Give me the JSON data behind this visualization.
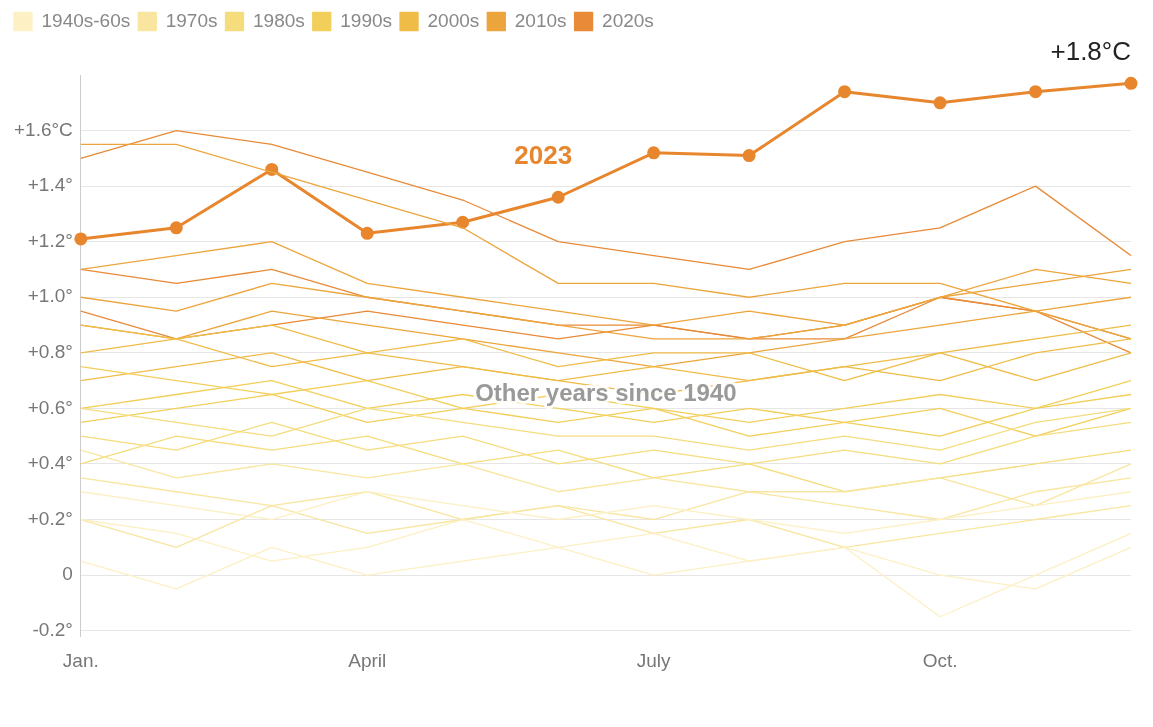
{
  "chart_data": {
    "type": "line",
    "categories": [
      "Jan.",
      null,
      null,
      "April",
      null,
      null,
      "July",
      null,
      null,
      "Oct.",
      null,
      null
    ],
    "ylim": [
      -0.22,
      1.8
    ],
    "yticks": [
      {
        "value": -0.2,
        "label": "-0.2°"
      },
      0,
      {
        "value": 0.2,
        "label": "+0.2°"
      },
      {
        "value": 0.4,
        "label": "+0.4°"
      },
      {
        "value": 0.6,
        "label": "+0.6°"
      },
      {
        "value": 0.8,
        "label": "+0.8°"
      },
      {
        "value": 1.0,
        "label": "+1.0°"
      },
      {
        "value": 1.2,
        "label": "+1.2°"
      },
      {
        "value": 1.4,
        "label": "+1.4°"
      },
      {
        "value": 1.6,
        "label": "+1.6°C"
      }
    ],
    "grid": "y",
    "legend": "top left",
    "marker": "none",
    "annotations": [
      "Other years since 1940",
      "+1.8°C"
    ],
    "series": [
      {
        "name": "1940s-60s",
        "color": "#fcf0c4",
        "values": [
          0.05,
          -0.05,
          0.1,
          0.0,
          0.05,
          0.1,
          0.0,
          0.05,
          0.1,
          0.0,
          -0.05,
          0.1
        ]
      },
      {
        "color": "#fcf0c4",
        "values": [
          0.2,
          0.15,
          0.05,
          0.1,
          0.2,
          0.1,
          0.15,
          0.05,
          0.1,
          -0.15,
          0.0,
          0.15
        ]
      },
      {
        "color": "#fcf0c4",
        "values": [
          0.3,
          0.25,
          0.2,
          0.3,
          0.25,
          0.2,
          0.25,
          0.2,
          0.15,
          0.2,
          0.25,
          0.3
        ]
      },
      {
        "name": "1970s",
        "color": "#f8e6a0",
        "values": [
          0.35,
          0.3,
          0.25,
          0.3,
          0.2,
          0.25,
          0.2,
          0.3,
          0.25,
          0.2,
          0.3,
          0.35
        ]
      },
      {
        "color": "#f8e6a0",
        "values": [
          0.45,
          0.35,
          0.4,
          0.35,
          0.4,
          0.3,
          0.35,
          0.3,
          0.3,
          0.35,
          0.25,
          0.4
        ]
      },
      {
        "color": "#f8e6a0",
        "values": [
          0.2,
          0.1,
          0.25,
          0.15,
          0.2,
          0.25,
          0.15,
          0.2,
          0.1,
          0.15,
          0.2,
          0.25
        ]
      },
      {
        "name": "1980s",
        "color": "#f5dc7c",
        "values": [
          0.5,
          0.45,
          0.55,
          0.45,
          0.5,
          0.4,
          0.45,
          0.4,
          0.45,
          0.4,
          0.5,
          0.55
        ]
      },
      {
        "color": "#f5dc7c",
        "values": [
          0.4,
          0.5,
          0.45,
          0.5,
          0.4,
          0.45,
          0.35,
          0.4,
          0.3,
          0.35,
          0.4,
          0.45
        ]
      },
      {
        "color": "#f5dc7c",
        "values": [
          0.6,
          0.55,
          0.5,
          0.6,
          0.55,
          0.5,
          0.5,
          0.45,
          0.5,
          0.45,
          0.55,
          0.6
        ]
      },
      {
        "name": "1990s",
        "color": "#f2cf5a",
        "values": [
          0.6,
          0.65,
          0.7,
          0.6,
          0.65,
          0.6,
          0.55,
          0.6,
          0.55,
          0.5,
          0.6,
          0.7
        ]
      },
      {
        "color": "#f2cf5a",
        "values": [
          0.75,
          0.7,
          0.65,
          0.7,
          0.6,
          0.65,
          0.6,
          0.55,
          0.6,
          0.65,
          0.6,
          0.65
        ]
      },
      {
        "color": "#f2cf5a",
        "values": [
          0.55,
          0.6,
          0.65,
          0.55,
          0.6,
          0.55,
          0.6,
          0.5,
          0.55,
          0.6,
          0.5,
          0.6
        ]
      },
      {
        "name": "2000s",
        "color": "#efbc48",
        "values": [
          0.8,
          0.85,
          0.75,
          0.8,
          0.75,
          0.7,
          0.75,
          0.7,
          0.75,
          0.7,
          0.8,
          0.85
        ]
      },
      {
        "color": "#efbc48",
        "values": [
          0.9,
          0.85,
          0.9,
          0.8,
          0.85,
          0.75,
          0.8,
          0.8,
          0.7,
          0.8,
          0.85,
          0.9
        ]
      },
      {
        "color": "#efbc48",
        "values": [
          0.7,
          0.75,
          0.8,
          0.7,
          0.75,
          0.7,
          0.65,
          0.7,
          0.75,
          0.8,
          0.7,
          0.8
        ]
      },
      {
        "name": "2010s",
        "color": "#eca53c",
        "values": [
          1.55,
          1.55,
          1.45,
          1.35,
          1.25,
          1.05,
          1.05,
          1.0,
          1.05,
          1.05,
          0.95,
          0.85
        ]
      },
      {
        "color": "#eca53c",
        "values": [
          1.0,
          0.95,
          1.05,
          1.0,
          0.95,
          0.9,
          0.85,
          0.85,
          0.9,
          1.0,
          1.05,
          1.1
        ]
      },
      {
        "color": "#eca53c",
        "values": [
          1.1,
          1.15,
          1.2,
          1.05,
          1.0,
          0.95,
          0.9,
          0.95,
          0.9,
          1.0,
          1.1,
          1.05
        ]
      },
      {
        "color": "#eca53c",
        "values": [
          0.9,
          0.85,
          0.95,
          0.9,
          0.85,
          0.8,
          0.75,
          0.8,
          0.85,
          0.9,
          0.95,
          1.0
        ]
      },
      {
        "name": "2020s",
        "color": "#e88a38",
        "values": [
          1.5,
          1.6,
          1.55,
          1.45,
          1.35,
          1.2,
          1.15,
          1.1,
          1.2,
          1.25,
          1.4,
          1.15
        ]
      },
      {
        "color": "#e88a38",
        "values": [
          0.95,
          0.85,
          0.9,
          0.95,
          0.9,
          0.85,
          0.9,
          0.85,
          0.9,
          1.0,
          0.95,
          0.8
        ]
      },
      {
        "color": "#e88a38",
        "values": [
          1.1,
          1.05,
          1.1,
          1.0,
          0.95,
          0.9,
          0.9,
          0.85,
          0.85,
          1.0,
          0.95,
          0.85
        ]
      },
      {
        "name": "2023",
        "color": "#e8862e",
        "marker": "circle",
        "values": [
          1.21,
          1.25,
          1.46,
          1.23,
          1.27,
          1.36,
          1.52,
          1.51,
          1.74,
          1.7,
          1.74,
          1.77
        ]
      }
    ]
  }
}
